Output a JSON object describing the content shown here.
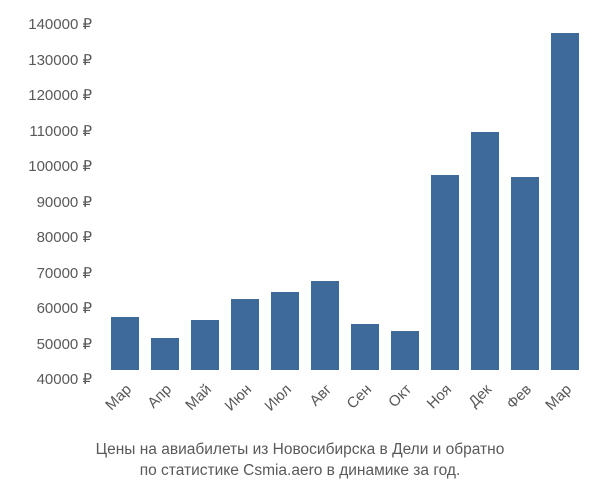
{
  "chart": {
    "type": "bar",
    "categories": [
      "Мар",
      "Апр",
      "Май",
      "Июн",
      "Июл",
      "Авг",
      "Сен",
      "Окт",
      "Ноя",
      "Дек",
      "Фев",
      "Мар"
    ],
    "values": [
      55000,
      49000,
      54000,
      60000,
      62000,
      65000,
      53000,
      51000,
      95000,
      107000,
      94500,
      135000
    ],
    "bar_color": "#3d6a98",
    "ymin": 40000,
    "ymax": 140000,
    "ytick_step": 10000,
    "ytick_suffix": " ₽",
    "background_color": "#ffffff",
    "text_color": "#595959",
    "tick_fontsize": 15,
    "caption_fontsize": 15.5,
    "bar_width_ratio": 0.7,
    "x_label_rotation": -45
  },
  "caption": {
    "line1": "Цены на авиабилеты из Новосибирска в Дели и обратно",
    "line2": "по статистике Csmia.aero в динамике за год."
  }
}
